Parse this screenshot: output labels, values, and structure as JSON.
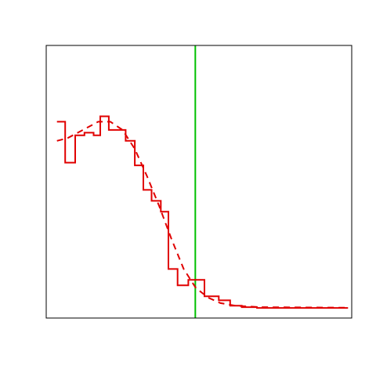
{
  "chart_data": {
    "type": "line",
    "title": "",
    "xlabel": "",
    "ylabel": "",
    "xlim": [
      0,
      1
    ],
    "ylim": [
      0,
      1
    ],
    "grid": false,
    "axes_ticks_visible": false,
    "series": [
      {
        "style": "step",
        "color": "#e00000",
        "line_style": "solid",
        "points": [
          [
            0.035,
            0.72
          ],
          [
            0.062,
            0.72
          ],
          [
            0.062,
            0.57
          ],
          [
            0.095,
            0.57
          ],
          [
            0.095,
            0.67
          ],
          [
            0.125,
            0.67
          ],
          [
            0.125,
            0.68
          ],
          [
            0.155,
            0.68
          ],
          [
            0.155,
            0.67
          ],
          [
            0.177,
            0.67
          ],
          [
            0.177,
            0.74
          ],
          [
            0.205,
            0.74
          ],
          [
            0.205,
            0.69
          ],
          [
            0.26,
            0.69
          ],
          [
            0.26,
            0.65
          ],
          [
            0.29,
            0.65
          ],
          [
            0.29,
            0.56
          ],
          [
            0.318,
            0.56
          ],
          [
            0.318,
            0.47
          ],
          [
            0.345,
            0.47
          ],
          [
            0.345,
            0.43
          ],
          [
            0.375,
            0.43
          ],
          [
            0.375,
            0.39
          ],
          [
            0.4,
            0.39
          ],
          [
            0.4,
            0.18
          ],
          [
            0.43,
            0.18
          ],
          [
            0.43,
            0.12
          ],
          [
            0.465,
            0.12
          ],
          [
            0.465,
            0.14
          ],
          [
            0.518,
            0.14
          ],
          [
            0.518,
            0.08
          ],
          [
            0.565,
            0.08
          ],
          [
            0.565,
            0.065
          ],
          [
            0.602,
            0.065
          ],
          [
            0.602,
            0.045
          ],
          [
            0.64,
            0.045
          ],
          [
            0.64,
            0.04
          ],
          [
            0.69,
            0.04
          ],
          [
            0.69,
            0.037
          ],
          [
            0.988,
            0.037
          ]
        ]
      },
      {
        "style": "smooth",
        "color": "#e00000",
        "line_style": "dashed",
        "points": [
          [
            0.035,
            0.65
          ],
          [
            0.07,
            0.66
          ],
          [
            0.12,
            0.69
          ],
          [
            0.17,
            0.72
          ],
          [
            0.21,
            0.72
          ],
          [
            0.25,
            0.69
          ],
          [
            0.29,
            0.62
          ],
          [
            0.33,
            0.52
          ],
          [
            0.37,
            0.41
          ],
          [
            0.41,
            0.29
          ],
          [
            0.45,
            0.18
          ],
          [
            0.49,
            0.11
          ],
          [
            0.53,
            0.075
          ],
          [
            0.57,
            0.055
          ],
          [
            0.62,
            0.045
          ],
          [
            0.7,
            0.04
          ],
          [
            0.988,
            0.038
          ]
        ]
      }
    ],
    "reference_lines": [
      {
        "orientation": "vertical",
        "x": 0.488,
        "color": "#00c000"
      }
    ]
  }
}
